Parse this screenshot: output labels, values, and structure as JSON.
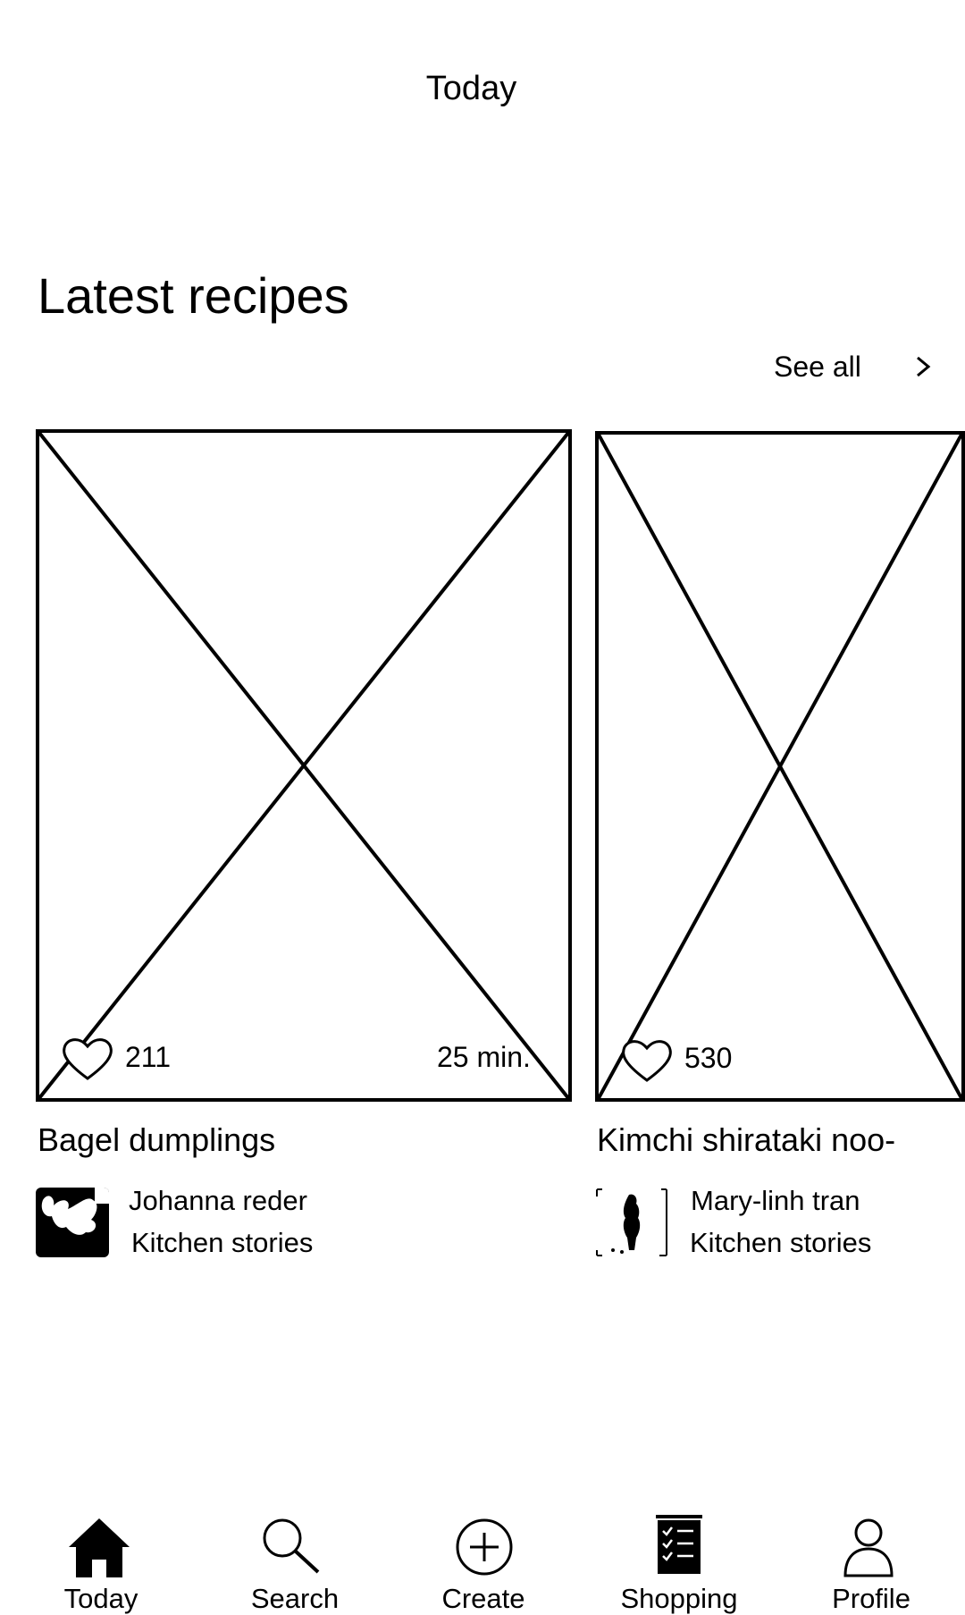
{
  "header": {
    "title": "Today"
  },
  "section": {
    "title": "Latest recipes",
    "see_all_label": "See all"
  },
  "recipes": [
    {
      "likes": "211",
      "duration": "25 min.",
      "title": "Bagel dumplings",
      "author": "Johanna reder",
      "source": "Kitchen stories"
    },
    {
      "likes": "530",
      "title": "Kimchi shirataki noo-",
      "author": "Mary-linh tran",
      "source": "Kitchen stories"
    }
  ],
  "tab_bar": {
    "items": [
      {
        "label": "Today",
        "icon": "home-icon"
      },
      {
        "label": "Search",
        "icon": "search-icon"
      },
      {
        "label": "Create",
        "icon": "plus-circle-icon"
      },
      {
        "label": "Shopping",
        "icon": "checklist-icon"
      },
      {
        "label": "Profile",
        "icon": "person-icon"
      }
    ]
  }
}
